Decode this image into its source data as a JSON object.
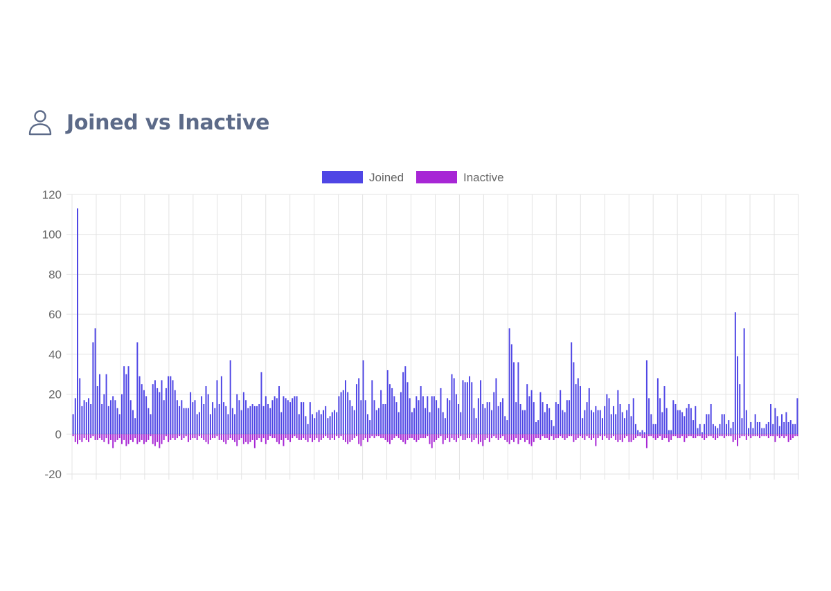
{
  "header": {
    "title": "Joined vs Inactive",
    "icon": "user-icon"
  },
  "colors": {
    "joined": "#4f46e5",
    "inactive": "#a726d5",
    "grid": "#e3e3e3",
    "axis_text": "#666666",
    "title": "#5c6a88"
  },
  "chart_data": {
    "type": "bar",
    "title": "Joined vs Inactive",
    "xlabel": "",
    "ylabel": "",
    "ylim": [
      -20,
      120
    ],
    "y_ticks": [
      -20,
      0,
      20,
      40,
      60,
      80,
      100,
      120
    ],
    "grid": true,
    "legend_position": "top",
    "legend": [
      "Joined",
      "Inactive"
    ],
    "series": [
      {
        "name": "Joined",
        "values": [
          10,
          18,
          113,
          28,
          14,
          17,
          16,
          18,
          15,
          46,
          53,
          24,
          30,
          15,
          20,
          30,
          14,
          17,
          19,
          17,
          13,
          10,
          20,
          34,
          30,
          34,
          17,
          12,
          8,
          46,
          29,
          25,
          22,
          19,
          13,
          10,
          25,
          27,
          23,
          21,
          27,
          17,
          23,
          29,
          29,
          27,
          22,
          17,
          14,
          17,
          13,
          13,
          13,
          21,
          16,
          17,
          10,
          11,
          19,
          15,
          24,
          20,
          10,
          16,
          13,
          27,
          15,
          29,
          16,
          14,
          10,
          37,
          13,
          10,
          20,
          17,
          12,
          21,
          17,
          13,
          14,
          15,
          14,
          14,
          15,
          31,
          14,
          19,
          15,
          13,
          17,
          19,
          18,
          24,
          11,
          19,
          18,
          17,
          16,
          18,
          19,
          19,
          10,
          16,
          16,
          9,
          5,
          16,
          10,
          8,
          11,
          12,
          10,
          12,
          14,
          8,
          9,
          11,
          12,
          11,
          19,
          21,
          22,
          27,
          21,
          17,
          14,
          12,
          25,
          28,
          17,
          37,
          17,
          10,
          7,
          27,
          17,
          12,
          13,
          22,
          15,
          15,
          32,
          25,
          23,
          19,
          16,
          11,
          21,
          31,
          34,
          26,
          18,
          11,
          13,
          19,
          17,
          24,
          19,
          13,
          19,
          11,
          19,
          19,
          17,
          13,
          23,
          11,
          8,
          18,
          17,
          30,
          28,
          20,
          15,
          11,
          27,
          26,
          26,
          29,
          26,
          13,
          8,
          18,
          27,
          15,
          13,
          16,
          16,
          12,
          21,
          28,
          14,
          16,
          18,
          9,
          7,
          53,
          45,
          36,
          16,
          36,
          15,
          12,
          12,
          25,
          19,
          22,
          16,
          6,
          7,
          21,
          16,
          11,
          15,
          13,
          7,
          4,
          16,
          15,
          22,
          12,
          11,
          17,
          17,
          46,
          36,
          25,
          28,
          24,
          8,
          12,
          16,
          23,
          12,
          11,
          14,
          12,
          12,
          8,
          14,
          20,
          18,
          10,
          14,
          10,
          22,
          15,
          11,
          8,
          12,
          15,
          9,
          18,
          5,
          2,
          1,
          2,
          1,
          37,
          18,
          10,
          5,
          5,
          28,
          18,
          11,
          24,
          13,
          2,
          2,
          17,
          15,
          12,
          12,
          11,
          9,
          13,
          15,
          13,
          7,
          14,
          3,
          5,
          1,
          5,
          10,
          10,
          15,
          5,
          4,
          3,
          5,
          10,
          10,
          5,
          7,
          3,
          6,
          61,
          39,
          25,
          8,
          53,
          12,
          3,
          6,
          3,
          10,
          6,
          6,
          3,
          3,
          5,
          6,
          15,
          5,
          13,
          9,
          4,
          10,
          6,
          11,
          6,
          7,
          5,
          5,
          18
        ]
      },
      {
        "name": "Inactive",
        "values": [
          -1,
          -4,
          -5,
          -3,
          -4,
          -2,
          -3,
          -4,
          -2,
          -1,
          -3,
          -3,
          -2,
          -3,
          -4,
          -2,
          -5,
          -3,
          -7,
          -4,
          -3,
          -2,
          -5,
          -3,
          -6,
          -5,
          -3,
          -4,
          -2,
          -5,
          -4,
          -3,
          -5,
          -4,
          -3,
          -1,
          -5,
          -6,
          -4,
          -7,
          -5,
          -3,
          -1,
          -4,
          -3,
          -2,
          -3,
          -2,
          -1,
          -3,
          -2,
          -1,
          -4,
          -3,
          -2,
          -2,
          -3,
          -1,
          -2,
          -3,
          -4,
          -5,
          -3,
          -2,
          -2,
          -1,
          -3,
          -3,
          -4,
          -5,
          -3,
          -2,
          -3,
          -4,
          -6,
          -3,
          -2,
          -5,
          -4,
          -5,
          -4,
          -3,
          -7,
          -3,
          -2,
          -4,
          -2,
          -5,
          -3,
          -1,
          -2,
          -2,
          -4,
          -5,
          -3,
          -6,
          -2,
          -3,
          -4,
          -2,
          -1,
          -2,
          -3,
          -3,
          -2,
          -3,
          -4,
          -2,
          -4,
          -3,
          -2,
          -4,
          -3,
          -2,
          -1,
          -2,
          -3,
          -2,
          -3,
          -1,
          -2,
          -1,
          -3,
          -4,
          -5,
          -4,
          -3,
          -2,
          -1,
          -5,
          -6,
          -3,
          -2,
          -4,
          -2,
          -1,
          -2,
          -1,
          -1,
          -2,
          -2,
          -3,
          -4,
          -5,
          -3,
          -2,
          -1,
          -2,
          -3,
          -4,
          -5,
          -3,
          -2,
          -2,
          -3,
          -4,
          -3,
          -2,
          -2,
          -2,
          -1,
          -5,
          -7,
          -4,
          -3,
          -2,
          -1,
          -5,
          -3,
          -2,
          -4,
          -2,
          -3,
          -4,
          -2,
          -1,
          -3,
          -3,
          -2,
          -2,
          -4,
          -3,
          -2,
          -5,
          -4,
          -6,
          -3,
          -2,
          -4,
          -2,
          -1,
          -2,
          -3,
          -2,
          -1,
          -3,
          -4,
          -5,
          -3,
          -4,
          -2,
          -5,
          -3,
          -2,
          -4,
          -3,
          -5,
          -6,
          -4,
          -2,
          -2,
          -3,
          -1,
          -2,
          -2,
          -3,
          -1,
          -3,
          -2,
          -2,
          -1,
          -2,
          -3,
          -2,
          -1,
          -1,
          -4,
          -3,
          -2,
          -1,
          -2,
          -3,
          -1,
          -2,
          -3,
          -2,
          -6,
          -2,
          -1,
          -3,
          -1,
          -2,
          -3,
          -2,
          -1,
          -3,
          -4,
          -3,
          -4,
          -2,
          -1,
          -4,
          -4,
          -3,
          -2,
          -1,
          -1,
          -2,
          -2,
          -7,
          -1,
          -1,
          -2,
          -3,
          -2,
          -1,
          -3,
          -2,
          -2,
          -4,
          -3,
          -1,
          -1,
          -2,
          -2,
          -1,
          -4,
          -2,
          -1,
          -1,
          -2,
          -2,
          -1,
          -1,
          -2,
          -3,
          -2,
          -1,
          -1,
          -2,
          -3,
          -2,
          -1,
          -1,
          -2,
          -1,
          -1,
          -1,
          -4,
          -3,
          -6,
          -2,
          -1,
          -1,
          -3,
          -1,
          -2,
          -1,
          -1,
          -1,
          -2,
          -1,
          -1,
          -1,
          -2,
          -1,
          -1,
          -4,
          -1,
          -2,
          -1,
          -2,
          -1,
          -4,
          -3,
          -2,
          -1,
          -1,
          -1
        ]
      }
    ]
  }
}
